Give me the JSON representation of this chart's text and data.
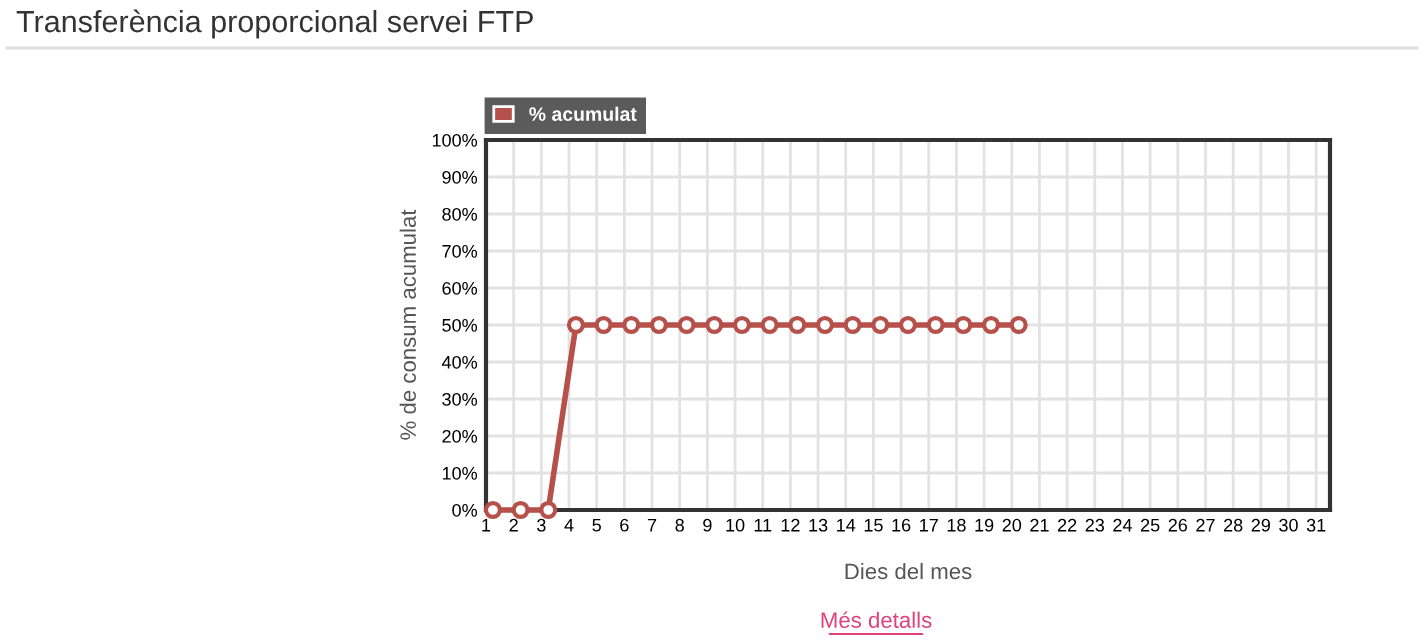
{
  "chart_data": {
    "type": "line",
    "title": "Transferència proporcional servei FTP",
    "xlabel": "Dies del mes",
    "ylabel": "% de consum acumulat",
    "categories": [
      "1",
      "2",
      "3",
      "4",
      "5",
      "6",
      "7",
      "8",
      "9",
      "10",
      "11",
      "12",
      "13",
      "14",
      "15",
      "16",
      "17",
      "18",
      "19",
      "20",
      "21",
      "22",
      "23",
      "24",
      "25",
      "26",
      "27",
      "28",
      "29",
      "30",
      "31"
    ],
    "series": [
      {
        "name": "% acumulat",
        "color": "#b5504a",
        "values": [
          0,
          0,
          0,
          50,
          50,
          50,
          50,
          50,
          50,
          50,
          50,
          50,
          50,
          50,
          50,
          50,
          50,
          50,
          50,
          50,
          null,
          null,
          null,
          null,
          null,
          null,
          null,
          null,
          null,
          null,
          null
        ]
      }
    ],
    "ylim": [
      0,
      100
    ],
    "yticks": [
      {
        "value": 0,
        "label": "0%"
      },
      {
        "value": 10,
        "label": "10%"
      },
      {
        "value": 20,
        "label": "20%"
      },
      {
        "value": 30,
        "label": "30%"
      },
      {
        "value": 40,
        "label": "40%"
      },
      {
        "value": 50,
        "label": "50%"
      },
      {
        "value": 60,
        "label": "60%"
      },
      {
        "value": 70,
        "label": "70%"
      },
      {
        "value": 80,
        "label": "80%"
      },
      {
        "value": 90,
        "label": "90%"
      },
      {
        "value": 100,
        "label": "100%"
      }
    ],
    "grid": true,
    "legend": "top left",
    "marker": "circle",
    "line_style": "solid",
    "annotations": [
      "Més detalls"
    ]
  }
}
